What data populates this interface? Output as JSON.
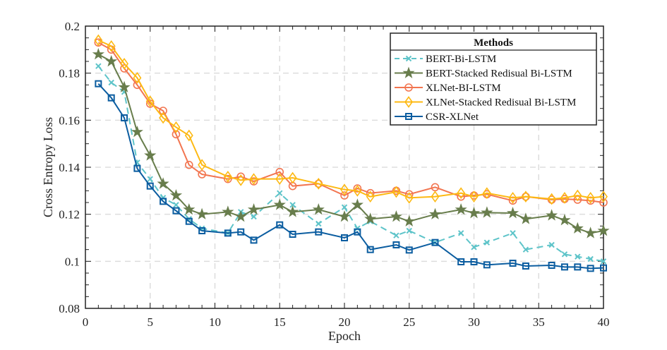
{
  "chart_data": {
    "type": "line",
    "xlabel": "Epoch",
    "ylabel": "Cross Entropy Loss",
    "xlim": [
      0,
      40
    ],
    "ylim": [
      0.08,
      0.2
    ],
    "xticks": [
      0,
      5,
      10,
      15,
      20,
      25,
      30,
      35,
      40
    ],
    "yticks": [
      0.08,
      0.1,
      0.12,
      0.14,
      0.16,
      0.18,
      0.2
    ],
    "ytick_labels": [
      "0.08",
      "0.1",
      "0.12",
      "0.14",
      "0.16",
      "0.18",
      "0.2"
    ],
    "grid": true,
    "legend_title": "Methods",
    "legend_position": "top-right",
    "x": [
      1,
      2,
      3,
      4,
      5,
      6,
      7,
      8,
      9,
      11,
      12,
      13,
      15,
      16,
      18,
      20,
      21,
      22,
      24,
      25,
      27,
      29,
      30,
      31,
      33,
      34,
      36,
      37,
      38,
      39,
      40
    ],
    "series": [
      {
        "name": "BERT-Bi-LSTM",
        "color": "#5ec4c9",
        "marker": "x",
        "dash": true,
        "values": [
          0.183,
          0.176,
          0.172,
          0.142,
          0.135,
          0.127,
          0.124,
          0.118,
          0.114,
          0.112,
          0.121,
          0.119,
          0.129,
          0.124,
          0.116,
          0.123,
          0.114,
          0.117,
          0.111,
          0.113,
          0.108,
          0.112,
          0.106,
          0.108,
          0.112,
          0.105,
          0.107,
          0.103,
          0.102,
          0.101,
          0.1
        ]
      },
      {
        "name": "BERT-Stacked Redisual Bi-LSTM",
        "color": "#687d4c",
        "marker": "star",
        "dash": false,
        "values": [
          0.188,
          0.185,
          0.174,
          0.155,
          0.145,
          0.133,
          0.128,
          0.122,
          0.12,
          0.121,
          0.119,
          0.122,
          0.124,
          0.121,
          0.122,
          0.119,
          0.124,
          0.118,
          0.119,
          0.117,
          0.12,
          0.122,
          0.1205,
          0.1207,
          0.1205,
          0.118,
          0.1195,
          0.1175,
          0.114,
          0.112,
          0.113
        ]
      },
      {
        "name": "XLNet-BI-LSTM",
        "color": "#f27550",
        "marker": "circle",
        "dash": false,
        "values": [
          0.193,
          0.19,
          0.182,
          0.175,
          0.167,
          0.164,
          0.154,
          0.141,
          0.137,
          0.135,
          0.136,
          0.134,
          0.138,
          0.132,
          0.133,
          0.128,
          0.131,
          0.129,
          0.13,
          0.1285,
          0.1315,
          0.1275,
          0.128,
          0.1285,
          0.1258,
          0.1275,
          0.1262,
          0.1265,
          0.1262,
          0.1258,
          0.125
        ]
      },
      {
        "name": "XLNet-Stacked Redisual Bi-LSTM",
        "color": "#fdb913",
        "marker": "diamond",
        "dash": false,
        "values": [
          0.194,
          0.1915,
          0.184,
          0.178,
          0.168,
          0.161,
          0.157,
          0.1535,
          0.141,
          0.136,
          0.1345,
          0.135,
          0.135,
          0.1355,
          0.133,
          0.1305,
          0.13,
          0.1275,
          0.1295,
          0.127,
          0.1275,
          0.129,
          0.1275,
          0.129,
          0.127,
          0.1275,
          0.1265,
          0.127,
          0.128,
          0.127,
          0.1275
        ]
      },
      {
        "name": "CSR-XLNet",
        "color": "#0b5da0",
        "marker": "square",
        "dash": false,
        "values": [
          0.1755,
          0.1695,
          0.161,
          0.1395,
          0.132,
          0.1255,
          0.1215,
          0.117,
          0.113,
          0.112,
          0.1125,
          0.109,
          0.1155,
          0.1115,
          0.1125,
          0.11,
          0.1125,
          0.105,
          0.107,
          0.1048,
          0.108,
          0.0998,
          0.0998,
          0.0985,
          0.0992,
          0.098,
          0.0983,
          0.0976,
          0.0976,
          0.097,
          0.0972
        ]
      }
    ]
  }
}
